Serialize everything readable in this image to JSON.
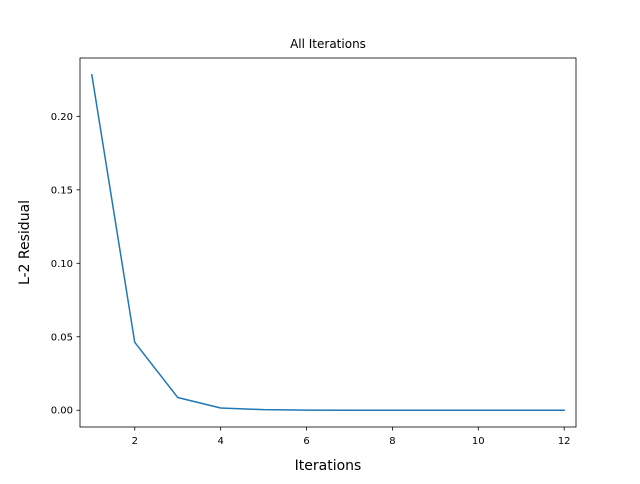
{
  "chart_data": {
    "type": "line",
    "title": "All Iterations",
    "xlabel": "Iterations",
    "ylabel": "L-2 Residual",
    "xlim": [
      0.725,
      12.275
    ],
    "ylim": [
      -0.0114,
      0.2397
    ],
    "xticks": [
      2,
      4,
      6,
      8,
      10,
      12
    ],
    "yticks": [
      0.0,
      0.05,
      0.1,
      0.15,
      0.2
    ],
    "xtick_labels": [
      "2",
      "4",
      "6",
      "8",
      "10",
      "12"
    ],
    "ytick_labels": [
      "0.00",
      "0.05",
      "0.10",
      "0.15",
      "0.20"
    ],
    "grid": false,
    "legend": "none",
    "series": [
      {
        "color": "#1f77b4",
        "x": [
          1,
          2,
          3,
          4,
          5,
          6,
          7,
          8,
          9,
          10,
          11,
          12
        ],
        "y": [
          0.2283,
          0.0462,
          0.0087,
          0.0015,
          0.0004,
          0.0001,
          0.0,
          0.0,
          0.0,
          0.0,
          0.0,
          0.0
        ]
      }
    ]
  }
}
